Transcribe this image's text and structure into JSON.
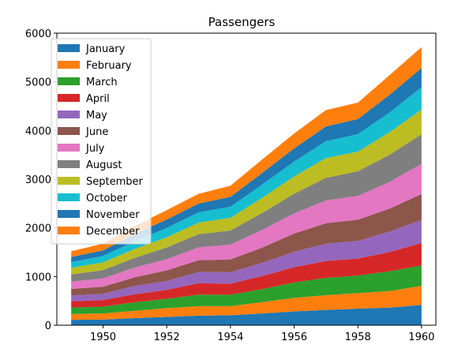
{
  "chart_data": {
    "type": "area",
    "stacked": true,
    "title": "Passengers",
    "xlabel": "",
    "ylabel": "",
    "x": [
      1949,
      1950,
      1951,
      1952,
      1953,
      1954,
      1955,
      1956,
      1957,
      1958,
      1959,
      1960
    ],
    "xlim": [
      1948.55,
      1960.45
    ],
    "ylim": [
      0,
      6000
    ],
    "xticks": [
      1950,
      1952,
      1954,
      1956,
      1958,
      1960
    ],
    "yticks": [
      0,
      1000,
      2000,
      3000,
      4000,
      5000,
      6000
    ],
    "grid": false,
    "legend_position": "top-left",
    "series": [
      {
        "name": "January",
        "color": "#1f77b4",
        "values": [
          112,
          115,
          145,
          171,
          196,
          204,
          242,
          284,
          315,
          340,
          360,
          417
        ]
      },
      {
        "name": "February",
        "color": "#ff7f0e",
        "values": [
          118,
          126,
          150,
          180,
          196,
          188,
          233,
          277,
          301,
          318,
          342,
          391
        ]
      },
      {
        "name": "March",
        "color": "#2ca02c",
        "values": [
          132,
          141,
          178,
          193,
          236,
          235,
          267,
          317,
          356,
          362,
          406,
          419
        ]
      },
      {
        "name": "April",
        "color": "#d62728",
        "values": [
          129,
          135,
          163,
          181,
          235,
          227,
          269,
          313,
          348,
          348,
          396,
          461
        ]
      },
      {
        "name": "May",
        "color": "#9467bd",
        "values": [
          121,
          125,
          172,
          183,
          229,
          234,
          270,
          318,
          355,
          363,
          420,
          472
        ]
      },
      {
        "name": "June",
        "color": "#8c564b",
        "values": [
          135,
          149,
          178,
          218,
          243,
          264,
          315,
          374,
          422,
          435,
          472,
          535
        ]
      },
      {
        "name": "July",
        "color": "#e377c2",
        "values": [
          148,
          170,
          199,
          230,
          264,
          302,
          364,
          413,
          465,
          491,
          548,
          622
        ]
      },
      {
        "name": "August",
        "color": "#7f7f7f",
        "values": [
          148,
          170,
          199,
          242,
          272,
          293,
          347,
          405,
          467,
          505,
          559,
          606
        ]
      },
      {
        "name": "September",
        "color": "#bcbd22",
        "values": [
          136,
          158,
          184,
          209,
          237,
          259,
          312,
          355,
          404,
          404,
          463,
          508
        ]
      },
      {
        "name": "October",
        "color": "#17becf",
        "values": [
          119,
          133,
          162,
          191,
          211,
          229,
          274,
          306,
          347,
          359,
          407,
          461
        ]
      },
      {
        "name": "November",
        "color": "#1f77b4",
        "values": [
          104,
          114,
          146,
          172,
          180,
          203,
          237,
          271,
          305,
          310,
          362,
          390
        ]
      },
      {
        "name": "December",
        "color": "#ff7f0e",
        "values": [
          118,
          140,
          166,
          194,
          201,
          229,
          278,
          306,
          336,
          337,
          405,
          432
        ]
      }
    ]
  }
}
